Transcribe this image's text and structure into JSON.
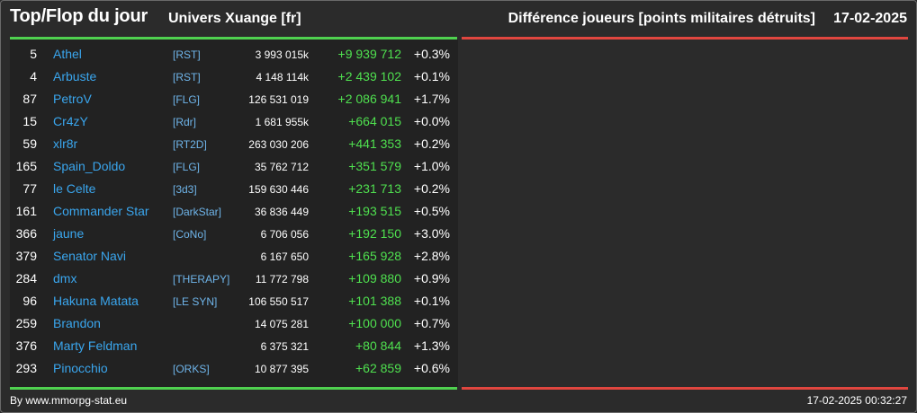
{
  "header": {
    "title": "Top/Flop du jour",
    "universe": "Univers Xuange [fr]",
    "subtitle": "Différence joueurs [points militaires détruits]",
    "date": "17-02-2025"
  },
  "colors": {
    "background": "#2b2b2b",
    "panel": "#222222",
    "accent_top": "#4fd14f",
    "accent_flop": "#e0463f",
    "player_name": "#3aa6ee",
    "alliance_tag": "#6fb5ea",
    "gain": "#4fe04f"
  },
  "top_rows": [
    {
      "rank": "5",
      "name": "Athel",
      "alliance": "[RST]",
      "points": "3 993 015k",
      "diff": "+9 939 712",
      "pct": "+0.3%"
    },
    {
      "rank": "4",
      "name": "Arbuste",
      "alliance": "[RST]",
      "points": "4 148 114k",
      "diff": "+2 439 102",
      "pct": "+0.1%"
    },
    {
      "rank": "87",
      "name": "PetroV",
      "alliance": "[FLG]",
      "points": "126 531 019",
      "diff": "+2 086 941",
      "pct": "+1.7%"
    },
    {
      "rank": "15",
      "name": "Cr4zY",
      "alliance": "[Rdr]",
      "points": "1 681 955k",
      "diff": "+664 015",
      "pct": "+0.0%"
    },
    {
      "rank": "59",
      "name": "xlr8r",
      "alliance": "[RT2D]",
      "points": "263 030 206",
      "diff": "+441 353",
      "pct": "+0.2%"
    },
    {
      "rank": "165",
      "name": "Spain_Doldo",
      "alliance": "[FLG]",
      "points": "35 762 712",
      "diff": "+351 579",
      "pct": "+1.0%"
    },
    {
      "rank": "77",
      "name": "le Celte",
      "alliance": "[3d3]",
      "points": "159 630 446",
      "diff": "+231 713",
      "pct": "+0.2%"
    },
    {
      "rank": "161",
      "name": "Commander Star",
      "alliance": "[DarkStar]",
      "points": "36 836 449",
      "diff": "+193 515",
      "pct": "+0.5%"
    },
    {
      "rank": "366",
      "name": "jaune",
      "alliance": "[CoNo]",
      "points": "6 706 056",
      "diff": "+192 150",
      "pct": "+3.0%"
    },
    {
      "rank": "379",
      "name": "Senator Navi",
      "alliance": "",
      "points": "6 167 650",
      "diff": "+165 928",
      "pct": "+2.8%"
    },
    {
      "rank": "284",
      "name": "dmx",
      "alliance": "[THERAPY]",
      "points": "11 772 798",
      "diff": "+109 880",
      "pct": "+0.9%"
    },
    {
      "rank": "96",
      "name": "Hakuna Matata",
      "alliance": "[LE SYN]",
      "points": "106 550 517",
      "diff": "+101 388",
      "pct": "+0.1%"
    },
    {
      "rank": "259",
      "name": "Brandon",
      "alliance": "",
      "points": "14 075 281",
      "diff": "+100 000",
      "pct": "+0.7%"
    },
    {
      "rank": "376",
      "name": "Marty Feldman",
      "alliance": "",
      "points": "6 375 321",
      "diff": "+80 844",
      "pct": "+1.3%"
    },
    {
      "rank": "293",
      "name": "Pinocchio",
      "alliance": "[ORKS]",
      "points": "10 877 395",
      "diff": "+62 859",
      "pct": "+0.6%"
    }
  ],
  "footer": {
    "credit": "By www.mmorpg-stat.eu",
    "timestamp": "17-02-2025 00:32:27"
  }
}
